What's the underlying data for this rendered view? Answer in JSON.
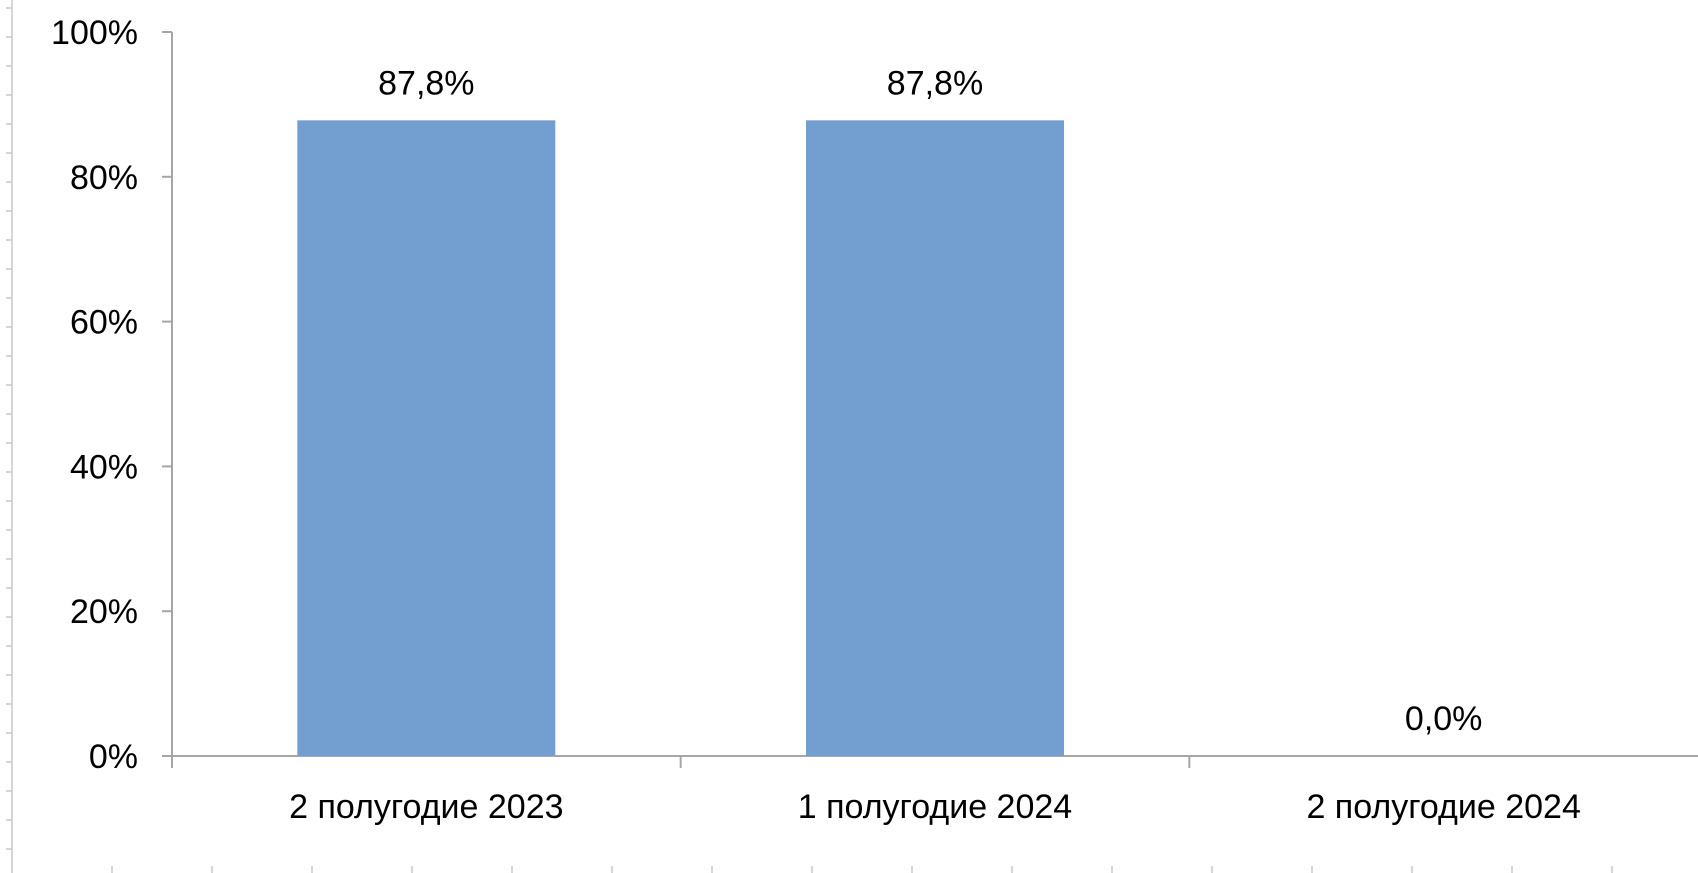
{
  "chart_data": {
    "type": "bar",
    "categories": [
      "2 полугодие 2023",
      "1 полугодие 2024",
      "2 полугодие 2024"
    ],
    "values": [
      87.8,
      87.8,
      0.0
    ],
    "data_labels": [
      "87,8%",
      "87,8%",
      "0,0%"
    ],
    "ylim": [
      0,
      100
    ],
    "yticks": [
      0,
      20,
      40,
      60,
      80,
      100
    ],
    "ytick_labels": [
      "0%",
      "20%",
      "40%",
      "60%",
      "80%",
      "100%"
    ],
    "bar_color": "#729fcf",
    "grid": false,
    "legend": "none"
  }
}
